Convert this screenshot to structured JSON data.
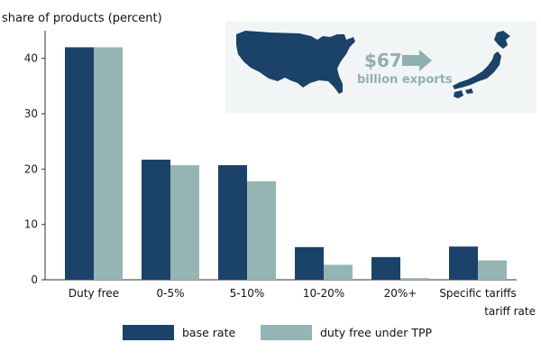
{
  "chart_data": {
    "type": "bar",
    "title": "",
    "ylabel": "share of products (percent)",
    "xlabel": "tariff rate",
    "ylim": [
      0,
      45
    ],
    "yticks": [
      0,
      10,
      20,
      30,
      40
    ],
    "categories": [
      "Duty free",
      "0-5%",
      "5-10%",
      "10-20%",
      "20%+",
      "Specific tariffs"
    ],
    "series": [
      {
        "name": "base rate",
        "color": "#1b4268",
        "values": [
          42,
          21.7,
          20.7,
          5.9,
          4.1,
          6.0
        ]
      },
      {
        "name": "duty free under TPP",
        "color": "#95b5b5",
        "values": [
          42,
          20.7,
          17.8,
          2.7,
          0.3,
          3.5
        ]
      }
    ],
    "annotation": {
      "amount": "$67",
      "subtitle": "billion exports",
      "from": "United States",
      "to": "Japan"
    }
  },
  "colors": {
    "annotation_bg": "#f2f5f6",
    "map_fill": "#1b4268",
    "arrow": "#8fb0b0",
    "axis": "#333333"
  }
}
